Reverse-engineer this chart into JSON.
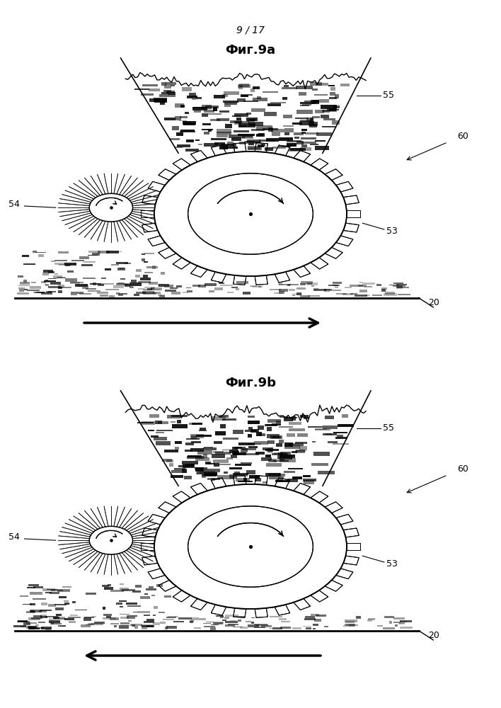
{
  "page_label": "9 / 17",
  "fig_a_title": "Фиг.9а",
  "fig_b_title": "Фиг.9b",
  "background_color": "#ffffff",
  "label_53": "53",
  "label_54": "54",
  "label_55": "55",
  "label_60": "60",
  "label_20": "20"
}
